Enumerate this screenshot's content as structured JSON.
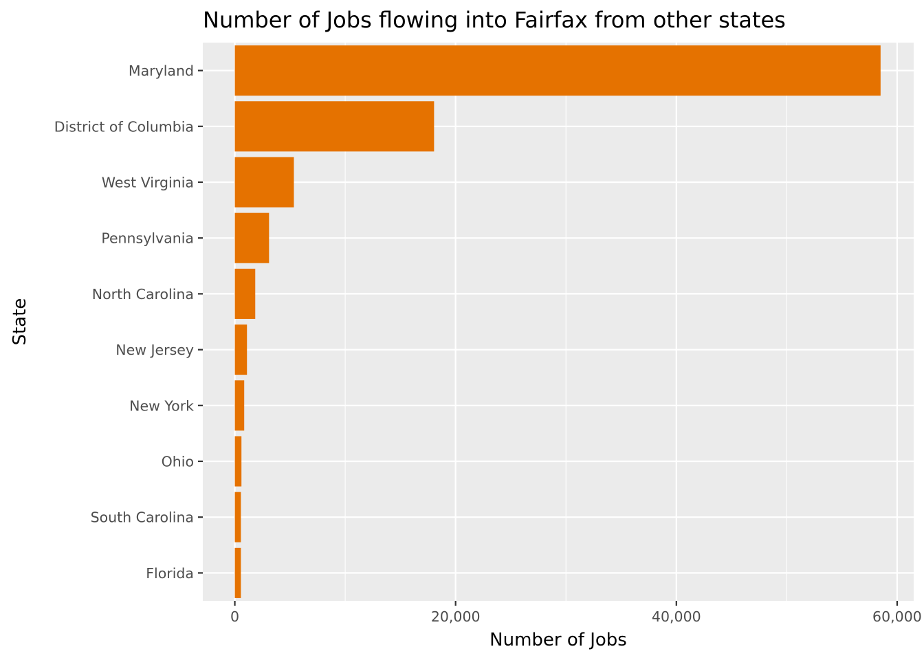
{
  "chart_data": {
    "type": "bar",
    "orientation": "horizontal",
    "title": "Number of Jobs flowing into Fairfax from other states",
    "xlabel": "Number of Jobs",
    "ylabel": "State",
    "categories": [
      "Maryland",
      "District of Columbia",
      "West Virginia",
      "Pennsylvania",
      "North Carolina",
      "New Jersey",
      "New York",
      "Ohio",
      "South Carolina",
      "Florida"
    ],
    "values": [
      58500,
      18050,
      5350,
      3100,
      1850,
      1100,
      850,
      600,
      550,
      550
    ],
    "xlim": [
      -2900,
      61500
    ],
    "xticks": [
      0,
      20000,
      40000,
      60000
    ],
    "xtick_labels": [
      "0",
      "20,000",
      "40,000",
      "60,000"
    ],
    "bar_color": "#E57200",
    "panel_color": "#EBEBEB",
    "grid_color": "#FFFFFF",
    "grid": true,
    "legend": "none"
  }
}
